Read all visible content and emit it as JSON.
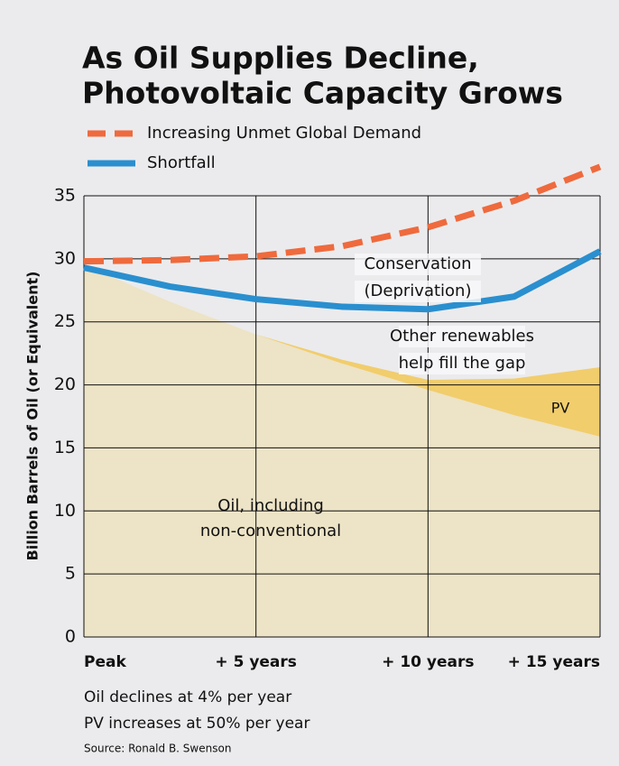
{
  "chart_data": {
    "type": "line",
    "title": [
      "As Oil Supplies Decline,",
      "Photovoltaic Capacity Grows"
    ],
    "y_label": "Billion Barrels of Oil (or Equivalent)",
    "x": [
      0,
      2.5,
      5,
      7.5,
      10,
      12.5,
      15
    ],
    "xlim": [
      0,
      15
    ],
    "xticks": [
      {
        "value": 0,
        "label": "Peak"
      },
      {
        "value": 5,
        "label": "+ 5 years"
      },
      {
        "value": 10,
        "label": "+ 10 years"
      },
      {
        "value": 15,
        "label": "+ 15 years"
      }
    ],
    "ylim": [
      0,
      35
    ],
    "yticks": [
      0,
      5,
      10,
      15,
      20,
      25,
      30,
      35
    ],
    "grid": true,
    "areas": [
      {
        "label": [
          "Oil, including",
          "non-conventional"
        ],
        "color": "#ede3c6",
        "values": [
          29.5,
          26.6,
          24.0,
          21.7,
          19.6,
          17.6,
          15.9
        ]
      },
      {
        "label": [
          "PV"
        ],
        "color": "#f1cd6c",
        "values": [
          0,
          0,
          0,
          0.3,
          0.8,
          2.9,
          5.5
        ]
      }
    ],
    "series": [
      {
        "name": "Increasing Unmet Global Demand",
        "color": "#ef6a3d",
        "dashed": true,
        "values": [
          29.8,
          29.9,
          30.2,
          31.0,
          32.5,
          34.6,
          37.3
        ]
      },
      {
        "name": "Shortfall",
        "color": "#2a8fcf",
        "dashed": false,
        "values": [
          29.3,
          27.8,
          26.8,
          26.2,
          26.0,
          27.0,
          30.6
        ]
      }
    ],
    "annotations": [
      [
        "Conservation",
        "(Deprivation)"
      ],
      [
        "Other renewables",
        "help fill the gap"
      ]
    ],
    "notes": [
      "Oil declines at 4% per year",
      "PV increases at 50% per year"
    ],
    "source": "Source: Ronald B. Swenson"
  }
}
